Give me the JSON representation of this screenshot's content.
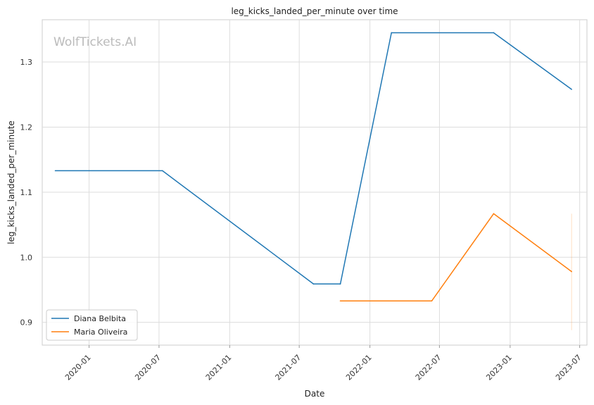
{
  "chart_data": {
    "type": "line",
    "title": "leg_kicks_landed_per_minute over time",
    "xlabel": "Date",
    "ylabel": "leg_kicks_landed_per_minute",
    "watermark": "WolfTickets.AI",
    "xlim": [
      "2019-09-01",
      "2023-07-20"
    ],
    "ylim": [
      0.865,
      1.365
    ],
    "x_ticks": [
      "2020-01",
      "2020-07",
      "2021-01",
      "2021-07",
      "2022-01",
      "2022-07",
      "2023-01",
      "2023-07"
    ],
    "y_ticks": [
      0.9,
      1.0,
      1.1,
      1.2,
      1.3
    ],
    "grid": true,
    "legend_position": "lower-left",
    "series": [
      {
        "name": "Diana Belbita",
        "color": "#1f77b4",
        "points": [
          {
            "x": "2019-10-05",
            "y": 1.133
          },
          {
            "x": "2020-07-10",
            "y": 1.133
          },
          {
            "x": "2021-08-07",
            "y": 0.959
          },
          {
            "x": "2021-10-16",
            "y": 0.959
          },
          {
            "x": "2022-02-26",
            "y": 1.345
          },
          {
            "x": "2022-11-19",
            "y": 1.345
          },
          {
            "x": "2023-06-10",
            "y": 1.258
          }
        ]
      },
      {
        "name": "Maria Oliveira",
        "color": "#ff7f0e",
        "points": [
          {
            "x": "2021-10-16",
            "y": 0.933
          },
          {
            "x": "2022-06-11",
            "y": 0.933
          },
          {
            "x": "2022-11-19",
            "y": 1.067
          },
          {
            "x": "2023-06-10",
            "y": 0.978
          }
        ]
      }
    ]
  }
}
